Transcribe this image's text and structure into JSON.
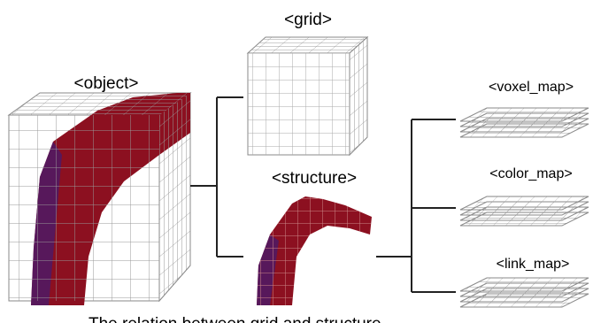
{
  "labels": {
    "object": "<object>",
    "grid": "<grid>",
    "structure": "<structure>",
    "voxel_map": "<voxel_map>",
    "color_map": "<color_map>",
    "link_map": "<link_map>"
  },
  "caption": "The relation between grid and structure"
}
